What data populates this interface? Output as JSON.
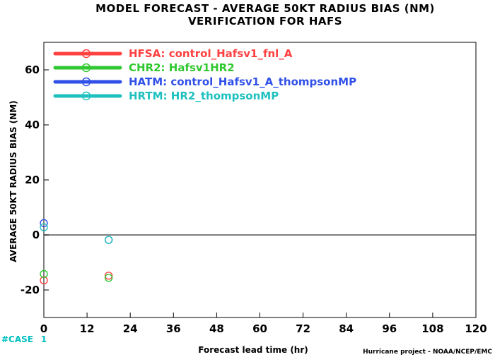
{
  "chart_data": {
    "type": "scatter",
    "title": "MODEL FORECAST - AVERAGE 50KT RADIUS BIAS (NM)",
    "subtitle": "VERIFICATION FOR HAFS",
    "xlabel": "Forecast lead time (hr)",
    "ylabel": "AVERAGE 50KT RADIUS BIAS (NM)",
    "xlim": [
      0,
      120
    ],
    "ylim": [
      -30,
      70
    ],
    "xticks": [
      0,
      12,
      24,
      36,
      48,
      60,
      72,
      84,
      96,
      108,
      120
    ],
    "yticks": [
      -20,
      0,
      20,
      40,
      60
    ],
    "zero_line": 0,
    "legend_position": "top-left",
    "series": [
      {
        "name": "HFSA: control_Hafsv1_fnl_A",
        "color": "#ff4040",
        "x": [
          0,
          18
        ],
        "y": [
          -16.5,
          -14.8
        ]
      },
      {
        "name": "CHR2: Hafsv1HR2",
        "color": "#30c830",
        "x": [
          0,
          18
        ],
        "y": [
          -14.2,
          -15.6
        ]
      },
      {
        "name": "HATM: control_Hafsv1_A_thompsonMP",
        "color": "#3050e8",
        "x": [
          0,
          18
        ],
        "y": [
          4.3,
          -1.8
        ]
      },
      {
        "name": "HRTM: HR2_thompsonMP",
        "color": "#20c0c0",
        "x": [
          0,
          18
        ],
        "y": [
          2.8,
          -1.8
        ]
      }
    ],
    "annotations": {
      "case_label": "#CASE",
      "case_values": [
        "1"
      ],
      "footer": "Hurricane project - NOAA/NCEP/EMC"
    }
  }
}
